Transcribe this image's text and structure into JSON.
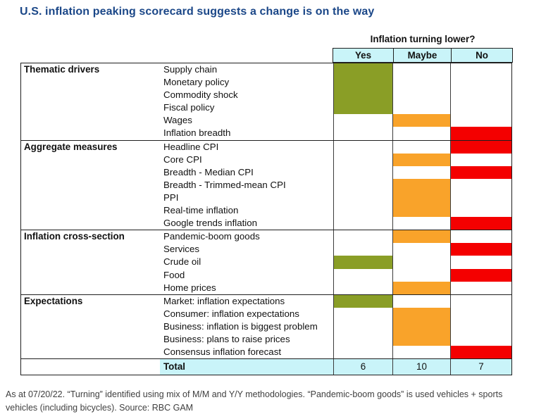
{
  "chart_data": {
    "type": "table",
    "title": "U.S. inflation peaking scorecard suggests a change is on the way",
    "column_group_header": "Inflation turning lower?",
    "columns": [
      "Yes",
      "Maybe",
      "No"
    ],
    "groups": [
      {
        "label": "Thematic drivers",
        "rows": [
          [
            "Supply chain",
            "Yes"
          ],
          [
            "Monetary policy",
            "Yes"
          ],
          [
            "Commodity shock",
            "Yes"
          ],
          [
            "Fiscal policy",
            "Yes"
          ],
          [
            "Wages",
            "Maybe"
          ],
          [
            "Inflation breadth",
            "No"
          ]
        ]
      },
      {
        "label": "Aggregate measures",
        "rows": [
          [
            "Headline CPI",
            "No"
          ],
          [
            "Core CPI",
            "Maybe"
          ],
          [
            "Breadth - Median CPI",
            "No"
          ],
          [
            "Breadth - Trimmed-mean CPI",
            "Maybe"
          ],
          [
            "PPI",
            "Maybe"
          ],
          [
            "Real-time inflation",
            "Maybe"
          ],
          [
            "Google trends inflation",
            "No"
          ]
        ]
      },
      {
        "label": "Inflation cross-section",
        "rows": [
          [
            "Pandemic-boom goods",
            "Maybe"
          ],
          [
            "Services",
            "No"
          ],
          [
            "Crude oil",
            "Yes"
          ],
          [
            "Food",
            "No"
          ],
          [
            "Home prices",
            "Maybe"
          ]
        ]
      },
      {
        "label": "Expectations",
        "rows": [
          [
            "Market: inflation expectations",
            "Yes"
          ],
          [
            "Consumer: inflation expectations",
            "Maybe"
          ],
          [
            "Business: inflation is biggest problem",
            "Maybe"
          ],
          [
            "Business: plans to raise prices",
            "Maybe"
          ],
          [
            "Consensus inflation forecast",
            "No"
          ]
        ]
      }
    ],
    "totals": {
      "label": "Total",
      "Yes": 6,
      "Maybe": 10,
      "No": 7
    },
    "cell_colors": {
      "Yes": "#8a9e26",
      "Maybe": "#f9a32a",
      "No": "#f40000"
    },
    "header_bg": "#c9f4f9",
    "title_color": "#1b4788"
  },
  "footnote": {
    "line1": "As at 07/20/22. “Turning” identified using mix of M/M and Y/Y methodologies. “Pandemic-boom goods” is used vehicles + sports",
    "line2": "vehicles (including bicycles). Source: RBC GAM"
  }
}
